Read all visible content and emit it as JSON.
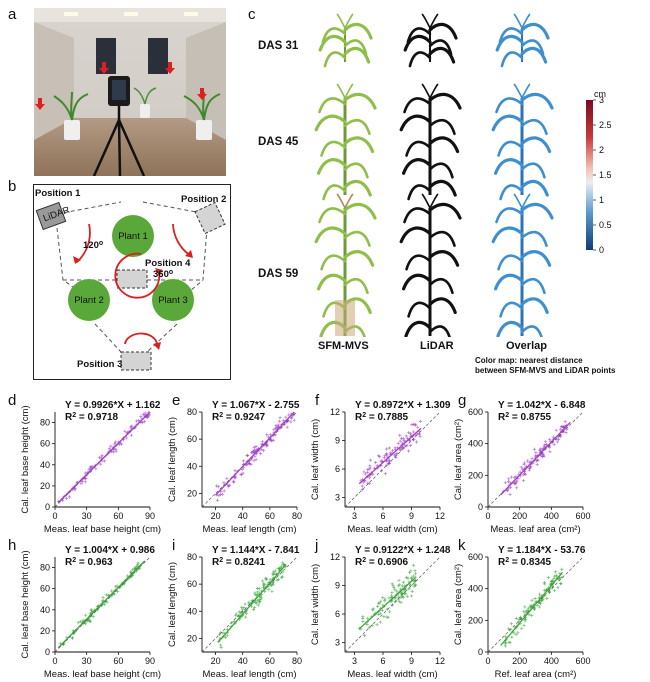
{
  "panels": {
    "a": "a",
    "b": "b",
    "c": "c",
    "d": "d",
    "e": "e",
    "f": "f",
    "g": "g",
    "h": "h",
    "i": "i",
    "j": "j",
    "k": "k"
  },
  "diagram_b": {
    "position1": "Position 1",
    "position2": "Position 2",
    "position3": "Position 3",
    "position4": "Position 4",
    "lidar": "LiDAR",
    "angle1": "120",
    "angle1_sup": "o",
    "angle2": "360",
    "angle2_sup": "o",
    "plant1": "Plant 1",
    "plant2": "Plant 2",
    "plant3": "Plant 3"
  },
  "panel_c": {
    "rows": [
      "DAS 31",
      "DAS 45",
      "DAS 59"
    ],
    "columns": [
      "SFM-MVS",
      "LiDAR",
      "Overlap"
    ],
    "colorbar_unit": "cm",
    "colorbar_ticks": [
      "3",
      "2.5",
      "2",
      "1.5",
      "1",
      "0.5",
      "0"
    ],
    "note_line1": "Color map: nearest distance",
    "note_line2": "between SFM-MVS and LiDAR points"
  },
  "chart_data": [
    {
      "id": "d",
      "type": "scatter",
      "color": "#a23fc8",
      "equation": "Y = 0.9926*X + 1.162",
      "r2_value": "0.9718",
      "xlabel": "Meas. leaf base height (cm)",
      "ylabel": "Cal. leaf base height (cm)",
      "xlim": [
        0,
        90
      ],
      "ylim": [
        0,
        90
      ],
      "xticks": [
        "0",
        "30",
        "60",
        "90"
      ],
      "yticks": [
        "0",
        "20",
        "40",
        "60",
        "80"
      ],
      "xticks_v": [
        0,
        30,
        60,
        90
      ],
      "yticks_v": [
        0,
        20,
        40,
        60,
        80
      ],
      "slope": 0.9926,
      "intercept": 1.162,
      "xrange_fit": [
        3,
        95
      ],
      "points": {
        "n": 110,
        "seed": 3,
        "xmin": 3,
        "xmax": 95,
        "noise": 4
      }
    },
    {
      "id": "e",
      "type": "scatter",
      "color": "#a23fc8",
      "equation": "Y = 1.067*X - 2.755",
      "r2_value": "0.9247",
      "xlabel": "Meas. leaf length (cm)",
      "ylabel": "Cal. leaf length (cm)",
      "xlim": [
        10,
        80
      ],
      "ylim": [
        10,
        80
      ],
      "xticks": [
        "20",
        "40",
        "60",
        "80"
      ],
      "yticks": [
        "20",
        "40",
        "60",
        "80"
      ],
      "xticks_v": [
        20,
        40,
        60,
        80
      ],
      "yticks_v": [
        20,
        40,
        60,
        80
      ],
      "slope": 1.067,
      "intercept": -2.755,
      "xrange_fit": [
        20,
        78
      ],
      "points": {
        "n": 130,
        "seed": 7,
        "xmin": 20,
        "xmax": 78,
        "noise": 4
      }
    },
    {
      "id": "f",
      "type": "scatter",
      "color": "#a23fc8",
      "equation": "Y = 0.8972*X + 1.309",
      "r2_value": "0.7885",
      "xlabel": "Meas. leaf width (cm)",
      "ylabel": "Cal. leaf width (cm)",
      "xlim": [
        2,
        12
      ],
      "ylim": [
        2,
        12
      ],
      "xticks": [
        "3",
        "6",
        "9",
        "12"
      ],
      "yticks": [
        "3",
        "6",
        "9",
        "12"
      ],
      "xticks_v": [
        3,
        6,
        9,
        12
      ],
      "yticks_v": [
        3,
        6,
        9,
        12
      ],
      "slope": 0.8972,
      "intercept": 1.309,
      "xrange_fit": [
        3.5,
        10
      ],
      "points": {
        "n": 110,
        "seed": 11,
        "xmin": 3.5,
        "xmax": 10,
        "noise": 0.9
      }
    },
    {
      "id": "g",
      "type": "scatter",
      "color": "#a23fc8",
      "equation": "Y = 1.042*X - 6.848",
      "r2_value": "0.8755",
      "xlabel": "Meas. leaf area (cm²)",
      "ylabel": "Cal. leaf area (cm²)",
      "xlim": [
        0,
        600
      ],
      "ylim": [
        0,
        600
      ],
      "xticks": [
        "0",
        "200",
        "400",
        "600"
      ],
      "yticks": [
        "0",
        "200",
        "400",
        "600"
      ],
      "xticks_v": [
        0,
        200,
        400,
        600
      ],
      "yticks_v": [
        0,
        200,
        400,
        600
      ],
      "slope": 1.042,
      "intercept": -6.848,
      "xrange_fit": [
        80,
        520
      ],
      "points": {
        "n": 120,
        "seed": 19,
        "xmin": 80,
        "xmax": 500,
        "noise": 40
      }
    },
    {
      "id": "h",
      "type": "scatter",
      "color": "#3aa53a",
      "equation": "Y = 1.004*X + 0.986",
      "r2_value": "0.963",
      "xlabel": "Meas. leaf base height (cm)",
      "ylabel": "Cal. leaf base height (cm)",
      "xlim": [
        0,
        90
      ],
      "ylim": [
        0,
        90
      ],
      "xticks": [
        "0",
        "30",
        "60",
        "90"
      ],
      "yticks": [
        "0",
        "20",
        "40",
        "60",
        "80"
      ],
      "xticks_v": [
        0,
        30,
        60,
        90
      ],
      "yticks_v": [
        0,
        20,
        40,
        60,
        80
      ],
      "slope": 1.004,
      "intercept": 0.986,
      "xrange_fit": [
        3,
        85
      ],
      "points": {
        "n": 100,
        "seed": 23,
        "xmin": 3,
        "xmax": 82,
        "noise": 4
      }
    },
    {
      "id": "i",
      "type": "scatter",
      "color": "#3aa53a",
      "equation": "Y = 1.144*X - 7.841",
      "r2_value": "0.8241",
      "xlabel": "Meas. leaf length (cm)",
      "ylabel": "Cal. leaf length (cm)",
      "xlim": [
        10,
        80
      ],
      "ylim": [
        10,
        80
      ],
      "xticks": [
        "20",
        "40",
        "60",
        "80"
      ],
      "yticks": [
        "20",
        "40",
        "60",
        "80"
      ],
      "xticks_v": [
        20,
        40,
        60,
        80
      ],
      "yticks_v": [
        20,
        40,
        60,
        80
      ],
      "slope": 1.144,
      "intercept": -7.841,
      "xrange_fit": [
        22,
        72
      ],
      "points": {
        "n": 130,
        "seed": 29,
        "xmin": 22,
        "xmax": 72,
        "noise": 5
      }
    },
    {
      "id": "j",
      "type": "scatter",
      "color": "#3aa53a",
      "equation": "Y = 0.9122*X + 1.248",
      "r2_value": "0.6906",
      "xlabel": "Meas. leaf width (cm)",
      "ylabel": "Cal. leaf width (cm)",
      "xlim": [
        2,
        12
      ],
      "ylim": [
        2,
        12
      ],
      "xticks": [
        "3",
        "6",
        "9",
        "12"
      ],
      "yticks": [
        "3",
        "6",
        "9",
        "12"
      ],
      "xticks_v": [
        3,
        6,
        9,
        12
      ],
      "yticks_v": [
        3,
        6,
        9,
        12
      ],
      "slope": 0.9122,
      "intercept": 1.248,
      "xrange_fit": [
        3.5,
        9.5
      ],
      "points": {
        "n": 110,
        "seed": 31,
        "xmin": 3.5,
        "xmax": 9.5,
        "noise": 1.0
      }
    },
    {
      "id": "k",
      "type": "scatter",
      "color": "#3aa53a",
      "equation": "Y = 1.184*X - 53.76",
      "r2_value": "0.8345",
      "xlabel": "Ref. leaf area (cm²)",
      "ylabel": "Cal. leaf area (cm²)",
      "xlim": [
        0,
        600
      ],
      "ylim": [
        0,
        600
      ],
      "xticks": [
        "0",
        "200",
        "400",
        "600"
      ],
      "yticks": [
        "0",
        "200",
        "400",
        "600"
      ],
      "xticks_v": [
        0,
        200,
        400,
        600
      ],
      "yticks_v": [
        0,
        200,
        400,
        600
      ],
      "slope": 1.184,
      "intercept": -53.76,
      "xrange_fit": [
        80,
        470
      ],
      "points": {
        "n": 120,
        "seed": 37,
        "xmin": 80,
        "xmax": 470,
        "noise": 45
      }
    }
  ],
  "r2_label": "R",
  "r2_sup": "2",
  "r2_eq": " = "
}
